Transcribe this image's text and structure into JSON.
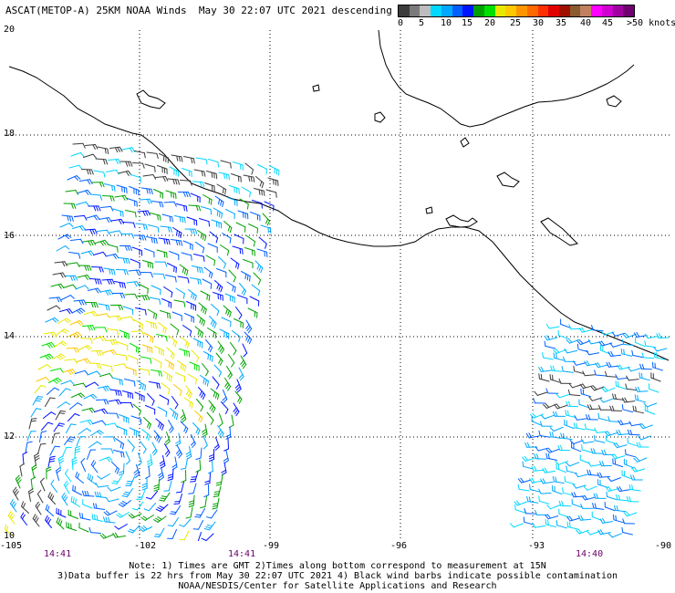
{
  "title": "ASCAT(METOP-A) 25KM NOAA Winds  May 30 22:07 UTC 2021 descending",
  "legend": {
    "labels": [
      "0",
      "5",
      "10",
      "15",
      "20",
      "25",
      "30",
      "35",
      "40",
      "45",
      ">50 knots"
    ],
    "colors": [
      "#3c3c3c",
      "#7a7a7a",
      "#bdbdbd",
      "#00d8ff",
      "#00a8ff",
      "#0060ff",
      "#0014ff",
      "#00a000",
      "#00e000",
      "#e8e800",
      "#ffc800",
      "#ff9600",
      "#ff6a00",
      "#ff3000",
      "#e00000",
      "#a01000",
      "#8a5a30",
      "#c08060",
      "#ff00ff",
      "#d000d0",
      "#a000a0",
      "#700070"
    ]
  },
  "lat_labels": [
    "20",
    "18",
    "16",
    "14",
    "12",
    "10"
  ],
  "lon_labels": [
    "-105",
    "-102",
    "-99",
    "-96",
    "-93",
    "-90"
  ],
  "times": [
    "14:41",
    "14:41",
    "14:40"
  ],
  "notes": [
    "Note: 1) Times are GMT 2)Times along bottom correspond to measurement at 15N",
    "3)Data buffer is 22 hrs from May 30 22:07 UTC 2021 4) Black wind barbs indicate possible contamination",
    "NOAA/NESDIS/Center for Satellite Applications and Research"
  ]
}
